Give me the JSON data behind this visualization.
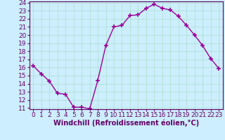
{
  "x": [
    0,
    1,
    2,
    3,
    4,
    5,
    6,
    7,
    8,
    9,
    10,
    11,
    12,
    13,
    14,
    15,
    16,
    17,
    18,
    19,
    20,
    21,
    22,
    23
  ],
  "y": [
    16.2,
    15.2,
    14.3,
    12.8,
    12.7,
    11.1,
    11.1,
    10.9,
    14.4,
    18.7,
    21.0,
    21.2,
    22.4,
    22.5,
    23.3,
    23.8,
    23.3,
    23.1,
    22.3,
    21.2,
    20.0,
    18.7,
    17.1,
    15.9
  ],
  "xlabel": "Windchill (Refroidissement éolien,°C)",
  "ylim_min": 11,
  "ylim_max": 24,
  "xlim_min": -0.5,
  "xlim_max": 23.5,
  "yticks": [
    11,
    12,
    13,
    14,
    15,
    16,
    17,
    18,
    19,
    20,
    21,
    22,
    23,
    24
  ],
  "xticks": [
    0,
    1,
    2,
    3,
    4,
    5,
    6,
    7,
    8,
    9,
    10,
    11,
    12,
    13,
    14,
    15,
    16,
    17,
    18,
    19,
    20,
    21,
    22,
    23
  ],
  "line_color": "#990099",
  "marker": "+",
  "bg_color": "#cceeff",
  "grid_color": "#aaddcc",
  "tick_label_color": "#660066",
  "xlabel_color": "#660066",
  "font_size": 6.5,
  "xlabel_fontsize": 7,
  "line_width": 1.0,
  "marker_size": 4,
  "marker_edge_width": 1.2
}
